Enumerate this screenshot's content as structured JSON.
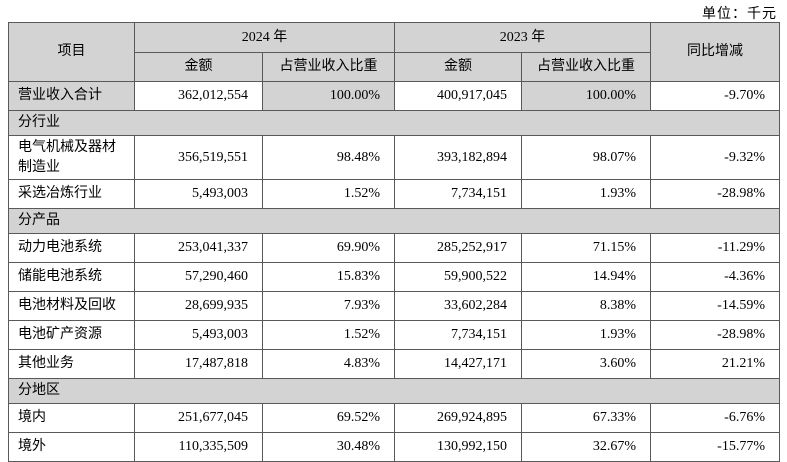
{
  "unit_label": "单位：千元",
  "table": {
    "headers": {
      "item": "项目",
      "year_2024": "2024 年",
      "year_2023": "2023 年",
      "amount": "金额",
      "ratio": "占营业收入比重",
      "yoy": "同比增减"
    },
    "rows": [
      {
        "type": "data",
        "highlight": true,
        "label": "营业收入合计",
        "amount_2024": "362,012,554",
        "ratio_2024": "100.00%",
        "amount_2023": "400,917,045",
        "ratio_2023": "100.00%",
        "yoy": "-9.70%"
      },
      {
        "type": "section",
        "label": "分行业"
      },
      {
        "type": "data",
        "label": "电气机械及器材制造业",
        "amount_2024": "356,519,551",
        "ratio_2024": "98.48%",
        "amount_2023": "393,182,894",
        "ratio_2023": "98.07%",
        "yoy": "-9.32%"
      },
      {
        "type": "data",
        "label": "采选冶炼行业",
        "amount_2024": "5,493,003",
        "ratio_2024": "1.52%",
        "amount_2023": "7,734,151",
        "ratio_2023": "1.93%",
        "yoy": "-28.98%"
      },
      {
        "type": "section",
        "label": "分产品"
      },
      {
        "type": "data",
        "label": "动力电池系统",
        "amount_2024": "253,041,337",
        "ratio_2024": "69.90%",
        "amount_2023": "285,252,917",
        "ratio_2023": "71.15%",
        "yoy": "-11.29%"
      },
      {
        "type": "data",
        "label": "储能电池系统",
        "amount_2024": "57,290,460",
        "ratio_2024": "15.83%",
        "amount_2023": "59,900,522",
        "ratio_2023": "14.94%",
        "yoy": "-4.36%"
      },
      {
        "type": "data",
        "label": "电池材料及回收",
        "amount_2024": "28,699,935",
        "ratio_2024": "7.93%",
        "amount_2023": "33,602,284",
        "ratio_2023": "8.38%",
        "yoy": "-14.59%"
      },
      {
        "type": "data",
        "label": "电池矿产资源",
        "amount_2024": "5,493,003",
        "ratio_2024": "1.52%",
        "amount_2023": "7,734,151",
        "ratio_2023": "1.93%",
        "yoy": "-28.98%"
      },
      {
        "type": "data",
        "label": "其他业务",
        "amount_2024": "17,487,818",
        "ratio_2024": "4.83%",
        "amount_2023": "14,427,171",
        "ratio_2023": "3.60%",
        "yoy": "21.21%"
      },
      {
        "type": "section",
        "label": "分地区"
      },
      {
        "type": "data",
        "label": "境内",
        "amount_2024": "251,677,045",
        "ratio_2024": "69.52%",
        "amount_2023": "269,924,895",
        "ratio_2023": "67.33%",
        "yoy": "-6.76%"
      },
      {
        "type": "data",
        "label": "境外",
        "amount_2024": "110,335,509",
        "ratio_2024": "30.48%",
        "amount_2023": "130,992,150",
        "ratio_2023": "32.67%",
        "yoy": "-15.77%"
      }
    ],
    "colors": {
      "header_bg": "#d3d3d3",
      "section_bg": "#d3d3d3",
      "highlight_bg": "#d3d3d3",
      "border": "#595959",
      "text": "#000000",
      "page_bg": "#ffffff"
    }
  }
}
